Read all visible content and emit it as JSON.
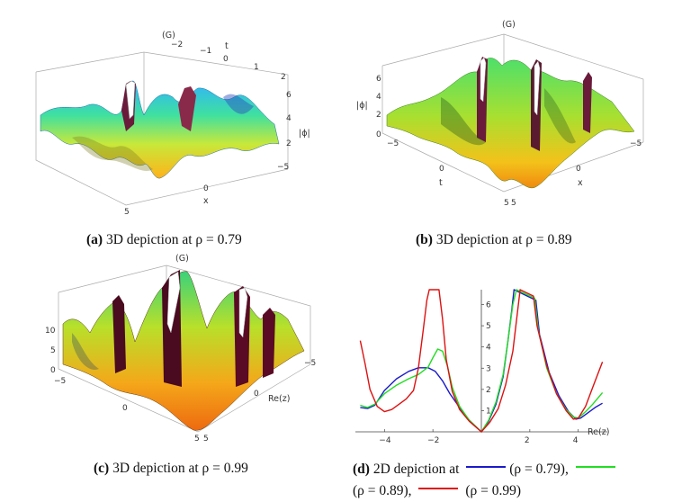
{
  "panels": {
    "a": {
      "title": "(G)",
      "axis_t": "t",
      "axis_x": "x",
      "axis_z": "|ϕ|",
      "t_ticks": [
        "−2",
        "−1",
        "0",
        "1",
        "2"
      ],
      "z_ticks": [
        "2",
        "4",
        "6"
      ],
      "x_ticks": [
        "−5",
        "0",
        "5"
      ],
      "caption_label": "(a)",
      "caption_text": "3D depiction at ρ = 0.79"
    },
    "b": {
      "title": "(G)",
      "axis_t": "t",
      "axis_x": "x",
      "axis_z": "|ϕ|",
      "z_ticks": [
        "0",
        "2",
        "4",
        "6"
      ],
      "t_ticks": [
        "−5",
        "0",
        "5"
      ],
      "x_ticks": [
        "5",
        "0",
        "−5"
      ],
      "caption_label": "(b)",
      "caption_text": "3D depiction at ρ = 0.89"
    },
    "c": {
      "title": "(G)",
      "axis_x": "Re(z)",
      "z_ticks": [
        "0",
        "5",
        "10"
      ],
      "left_ticks": [
        "−5",
        "0",
        "5"
      ],
      "right_ticks": [
        "−5",
        "0",
        "5"
      ],
      "caption_label": "(c)",
      "caption_text": "3D depiction at ρ = 0.99"
    },
    "d": {
      "caption_label": "(d)",
      "caption_pre": "2D depiction at",
      "caption_s1": "(ρ = 0.79),",
      "caption_s2": "(ρ = 0.89),",
      "caption_s3": "(ρ = 0.99)"
    }
  },
  "chart_data": {
    "type": "line",
    "title": "",
    "xlabel": "Re(z)",
    "ylabel": "",
    "xlim": [
      -5.2,
      5.2
    ],
    "ylim": [
      0,
      6.7
    ],
    "x_ticks": [
      "−4",
      "−2",
      "2",
      "4"
    ],
    "y_ticks": [
      "1",
      "2",
      "3",
      "4",
      "5",
      "6"
    ],
    "series": [
      {
        "name": "ρ = 0.79",
        "color": "#1a1acc",
        "x": [
          -5,
          -4.7,
          -4.4,
          -4,
          -3.5,
          -3,
          -2.6,
          -2.2,
          -1.9,
          -1.6,
          -1.3,
          -0.9,
          -0.5,
          0,
          0.3,
          0.6,
          0.9,
          1.1,
          1.25,
          1.35,
          2.25,
          2.4,
          2.8,
          3.2,
          3.6,
          3.9,
          4.1,
          4.4,
          4.7,
          5
        ],
        "y": [
          1.15,
          1.1,
          1.25,
          1.95,
          2.5,
          2.85,
          3.02,
          3.02,
          2.85,
          2.4,
          1.8,
          1.15,
          0.55,
          0,
          0.5,
          1.3,
          2.6,
          4.3,
          5.7,
          6.7,
          6.2,
          4.6,
          2.8,
          1.7,
          0.95,
          0.6,
          0.65,
          0.9,
          1.15,
          1.35
        ]
      },
      {
        "name": "ρ = 0.89",
        "color": "#22dd22",
        "x": [
          -5,
          -4.7,
          -4.4,
          -4,
          -3.5,
          -3,
          -2.6,
          -2.2,
          -2,
          -1.8,
          -1.6,
          -1.4,
          -1.2,
          -0.9,
          -0.5,
          0,
          0.3,
          0.6,
          0.9,
          1.1,
          1.3,
          1.45,
          2.2,
          2.35,
          2.7,
          3.1,
          3.5,
          3.8,
          4,
          4.3,
          4.6,
          5
        ],
        "y": [
          1.25,
          1.15,
          1.3,
          1.8,
          2.2,
          2.5,
          2.7,
          3.05,
          3.5,
          3.9,
          3.8,
          3.1,
          2.1,
          1.2,
          0.55,
          0,
          0.55,
          1.4,
          2.7,
          4.3,
          6.0,
          6.7,
          6.3,
          4.8,
          3.0,
          1.8,
          1.05,
          0.7,
          0.65,
          0.95,
          1.3,
          1.85
        ]
      },
      {
        "name": "ρ = 0.99",
        "color": "#dd1111",
        "x": [
          -5,
          -4.8,
          -4.6,
          -4.3,
          -4,
          -3.7,
          -3.4,
          -3.1,
          -2.8,
          -2.6,
          -2.4,
          -2.25,
          -2.15,
          -1.75,
          -1.6,
          -1.45,
          -1.2,
          -0.9,
          -0.5,
          0,
          0.35,
          0.7,
          1.0,
          1.3,
          1.6,
          2.15,
          2.3,
          2.7,
          3.1,
          3.5,
          3.8,
          4,
          4.3,
          4.6,
          5
        ],
        "y": [
          4.3,
          3.2,
          2.0,
          1.2,
          0.95,
          1.05,
          1.3,
          1.55,
          1.95,
          3.0,
          4.8,
          6.2,
          6.7,
          6.7,
          5.3,
          3.4,
          1.9,
          1.05,
          0.5,
          0,
          0.45,
          1.1,
          2.2,
          3.8,
          6.7,
          6.4,
          5.0,
          3.1,
          1.8,
          1.0,
          0.6,
          0.65,
          1.2,
          2.1,
          3.3
        ]
      }
    ]
  }
}
